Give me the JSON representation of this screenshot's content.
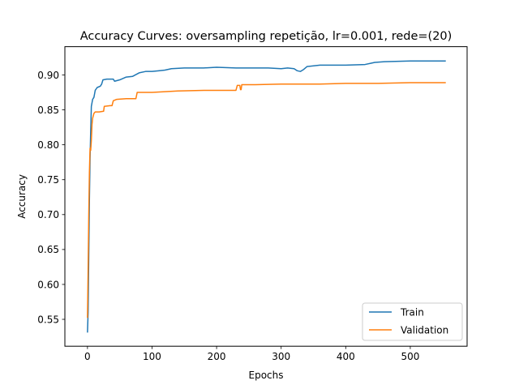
{
  "chart_data": {
    "type": "line",
    "title": "Accuracy Curves: oversampling repetição, lr=0.001, rede=(20)",
    "xlabel": "Epochs",
    "ylabel": "Accuracy",
    "xlim": [
      -35,
      588
    ],
    "ylim": [
      0.5115,
      0.9405
    ],
    "xticks": [
      0,
      100,
      200,
      300,
      400,
      500
    ],
    "xtick_labels": [
      "0",
      "100",
      "200",
      "300",
      "400",
      "500"
    ],
    "yticks": [
      0.55,
      0.6,
      0.65,
      0.7,
      0.75,
      0.8,
      0.85,
      0.9
    ],
    "ytick_labels": [
      "0.55",
      "0.60",
      "0.65",
      "0.70",
      "0.75",
      "0.80",
      "0.85",
      "0.90"
    ],
    "grid": false,
    "legend_position": "lower-right",
    "series": [
      {
        "name": "Train",
        "color": "#1f77b4",
        "points": [
          [
            0,
            0.531
          ],
          [
            1,
            0.56
          ],
          [
            2,
            0.64
          ],
          [
            3,
            0.72
          ],
          [
            4,
            0.78
          ],
          [
            5,
            0.82
          ],
          [
            6,
            0.855
          ],
          [
            8,
            0.865
          ],
          [
            10,
            0.868
          ],
          [
            12,
            0.878
          ],
          [
            15,
            0.882
          ],
          [
            20,
            0.884
          ],
          [
            22,
            0.887
          ],
          [
            24,
            0.893
          ],
          [
            30,
            0.894
          ],
          [
            40,
            0.894
          ],
          [
            42,
            0.891
          ],
          [
            50,
            0.893
          ],
          [
            60,
            0.897
          ],
          [
            70,
            0.898
          ],
          [
            80,
            0.903
          ],
          [
            90,
            0.905
          ],
          [
            100,
            0.905
          ],
          [
            110,
            0.906
          ],
          [
            120,
            0.907
          ],
          [
            130,
            0.909
          ],
          [
            150,
            0.91
          ],
          [
            180,
            0.91
          ],
          [
            200,
            0.911
          ],
          [
            230,
            0.91
          ],
          [
            260,
            0.91
          ],
          [
            280,
            0.91
          ],
          [
            300,
            0.909
          ],
          [
            310,
            0.91
          ],
          [
            320,
            0.909
          ],
          [
            325,
            0.906
          ],
          [
            330,
            0.905
          ],
          [
            335,
            0.908
          ],
          [
            340,
            0.912
          ],
          [
            360,
            0.914
          ],
          [
            400,
            0.914
          ],
          [
            430,
            0.915
          ],
          [
            440,
            0.917
          ],
          [
            445,
            0.918
          ],
          [
            460,
            0.919
          ],
          [
            500,
            0.92
          ],
          [
            530,
            0.92
          ],
          [
            555,
            0.92
          ]
        ]
      },
      {
        "name": "Validation",
        "color": "#ff7f0e",
        "points": [
          [
            0,
            0.552
          ],
          [
            1,
            0.62
          ],
          [
            2,
            0.7
          ],
          [
            3,
            0.76
          ],
          [
            4,
            0.795
          ],
          [
            5,
            0.792
          ],
          [
            6,
            0.806
          ],
          [
            7,
            0.829
          ],
          [
            8,
            0.838
          ],
          [
            10,
            0.845
          ],
          [
            12,
            0.847
          ],
          [
            18,
            0.847
          ],
          [
            25,
            0.848
          ],
          [
            26,
            0.855
          ],
          [
            35,
            0.856
          ],
          [
            38,
            0.856
          ],
          [
            40,
            0.863
          ],
          [
            45,
            0.865
          ],
          [
            60,
            0.866
          ],
          [
            75,
            0.866
          ],
          [
            77,
            0.875
          ],
          [
            100,
            0.875
          ],
          [
            120,
            0.876
          ],
          [
            140,
            0.877
          ],
          [
            180,
            0.878
          ],
          [
            230,
            0.878
          ],
          [
            232,
            0.885
          ],
          [
            236,
            0.885
          ],
          [
            237,
            0.879
          ],
          [
            238,
            0.879
          ],
          [
            239,
            0.886
          ],
          [
            260,
            0.886
          ],
          [
            300,
            0.887
          ],
          [
            340,
            0.887
          ],
          [
            360,
            0.887
          ],
          [
            400,
            0.888
          ],
          [
            450,
            0.888
          ],
          [
            500,
            0.889
          ],
          [
            555,
            0.889
          ]
        ]
      }
    ]
  }
}
